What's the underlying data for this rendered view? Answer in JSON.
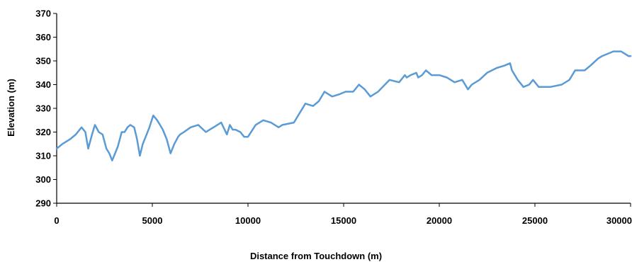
{
  "chart_data": {
    "type": "line",
    "title": "",
    "xlabel": "Distance from Touchdown (m)",
    "ylabel": "Elevation (m)",
    "xlim": [
      0,
      30000
    ],
    "ylim": [
      290,
      370
    ],
    "x_ticks": [
      0,
      5000,
      10000,
      15000,
      20000,
      25000,
      30000
    ],
    "x_tick_labels": [
      "0",
      "5000",
      "10000",
      "15000",
      "20000",
      "25000",
      "30000"
    ],
    "y_ticks": [
      290,
      300,
      310,
      320,
      330,
      340,
      350,
      360,
      370
    ],
    "y_tick_labels": [
      "290",
      "300",
      "310",
      "320",
      "330",
      "340",
      "350",
      "360",
      "370"
    ],
    "grid": false,
    "legend": "none",
    "line_color": "#5b9bd5",
    "series": [
      {
        "x": [
          0,
          300,
          700,
          1000,
          1300,
          1500,
          1650,
          1850,
          2000,
          2200,
          2400,
          2600,
          2750,
          2900,
          3050,
          3200,
          3400,
          3550,
          3700,
          3850,
          4050,
          4200,
          4350,
          4500,
          4650,
          4850,
          5050,
          5250,
          5400,
          5550,
          5750,
          5950,
          6150,
          6350,
          6450,
          6650,
          7000,
          7400,
          7800,
          8000,
          8200,
          8600,
          8900,
          9050,
          9200,
          9350,
          9600,
          9800,
          10000,
          10400,
          10800,
          11200,
          11600,
          11800,
          12400,
          13000,
          13400,
          13700,
          14000,
          14200,
          14400,
          14800,
          15100,
          15500,
          15800,
          16100,
          16400,
          16800,
          17400,
          17900,
          18200,
          18300,
          18500,
          18800,
          18900,
          19100,
          19300,
          19600,
          20000,
          20400,
          20800,
          21200,
          21500,
          21700,
          22100,
          22500,
          23000,
          23400,
          23700,
          23800,
          24100,
          24400,
          24700,
          24900,
          25200,
          25400,
          25800,
          26400,
          26800,
          27100,
          27400,
          27600,
          27900,
          28300,
          28500,
          28800,
          29100,
          29500,
          29900,
          30000
        ],
        "y": [
          313,
          315,
          317,
          319,
          322,
          320,
          313,
          319,
          323,
          320,
          319,
          313,
          311,
          308,
          311,
          314,
          320,
          320,
          322,
          323,
          322,
          317,
          310,
          315,
          318,
          322,
          327,
          325,
          323,
          321,
          317,
          311,
          315,
          318,
          319,
          320,
          322,
          323,
          320,
          321,
          322,
          324,
          319,
          323,
          321,
          321,
          320,
          318,
          318,
          323,
          325,
          324,
          322,
          323,
          324,
          332,
          331,
          333,
          337,
          336,
          335,
          336,
          337,
          337,
          340,
          338,
          335,
          337,
          342,
          341,
          344,
          343,
          344,
          345,
          343,
          344,
          346,
          344,
          344,
          343,
          341,
          342,
          338,
          340,
          342,
          345,
          347,
          348,
          349,
          346,
          342,
          339,
          340,
          342,
          339,
          339,
          339,
          340,
          342,
          346,
          346,
          346,
          348,
          351,
          352,
          353,
          354,
          354,
          352,
          352
        ]
      }
    ]
  }
}
